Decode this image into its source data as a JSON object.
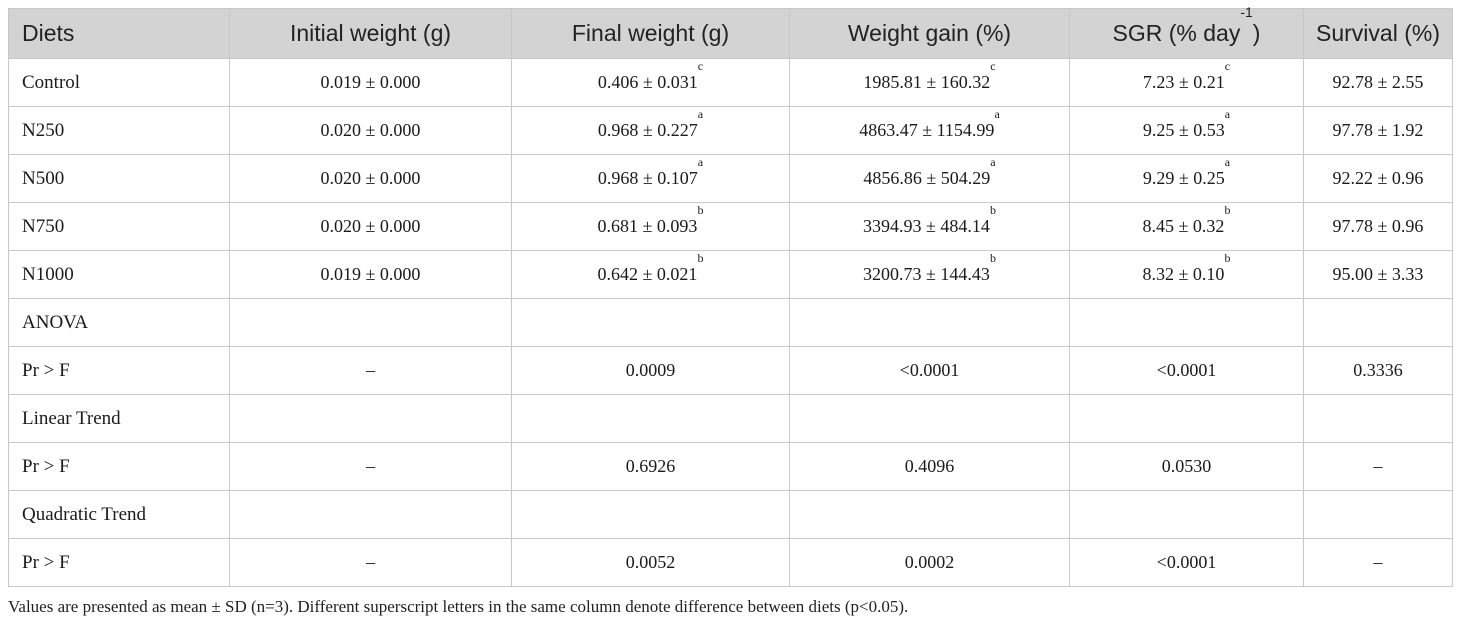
{
  "table": {
    "headers": [
      {
        "text": "Diets",
        "sup": ""
      },
      {
        "text": "Initial weight (g)",
        "sup": ""
      },
      {
        "text": "Final weight (g)",
        "sup": ""
      },
      {
        "text": "Weight gain (%)",
        "sup": ""
      },
      {
        "text": "SGR (% day",
        "sup": "-1",
        "post": ")"
      },
      {
        "text": "Survival (%)",
        "sup": ""
      }
    ],
    "rows": [
      {
        "label": "Control",
        "cells": [
          {
            "v": "0.019 ± 0.000",
            "s": ""
          },
          {
            "v": "0.406 ± 0.031",
            "s": "c"
          },
          {
            "v": "1985.81 ± 160.32",
            "s": "c"
          },
          {
            "v": "7.23 ± 0.21",
            "s": "c"
          },
          {
            "v": "92.78 ± 2.55",
            "s": ""
          }
        ]
      },
      {
        "label": "N250",
        "cells": [
          {
            "v": "0.020 ± 0.000",
            "s": ""
          },
          {
            "v": "0.968 ± 0.227",
            "s": "a"
          },
          {
            "v": "4863.47 ± 1154.99",
            "s": "a"
          },
          {
            "v": "9.25 ± 0.53",
            "s": "a"
          },
          {
            "v": "97.78 ± 1.92",
            "s": ""
          }
        ]
      },
      {
        "label": "N500",
        "cells": [
          {
            "v": "0.020 ± 0.000",
            "s": ""
          },
          {
            "v": "0.968 ± 0.107",
            "s": "a"
          },
          {
            "v": "4856.86 ± 504.29",
            "s": "a"
          },
          {
            "v": "9.29 ± 0.25",
            "s": "a"
          },
          {
            "v": "92.22 ± 0.96",
            "s": ""
          }
        ]
      },
      {
        "label": "N750",
        "cells": [
          {
            "v": "0.020 ± 0.000",
            "s": ""
          },
          {
            "v": "0.681 ± 0.093",
            "s": "b"
          },
          {
            "v": "3394.93 ± 484.14",
            "s": "b"
          },
          {
            "v": "8.45 ± 0.32",
            "s": "b"
          },
          {
            "v": "97.78 ± 0.96",
            "s": ""
          }
        ]
      },
      {
        "label": "N1000",
        "cells": [
          {
            "v": "0.019 ± 0.000",
            "s": ""
          },
          {
            "v": "0.642 ± 0.021",
            "s": "b"
          },
          {
            "v": "3200.73 ± 144.43",
            "s": "b"
          },
          {
            "v": "8.32 ± 0.10",
            "s": "b"
          },
          {
            "v": "95.00 ± 3.33",
            "s": ""
          }
        ]
      },
      {
        "label": "ANOVA",
        "cells": [
          {
            "v": "",
            "s": ""
          },
          {
            "v": "",
            "s": ""
          },
          {
            "v": "",
            "s": ""
          },
          {
            "v": "",
            "s": ""
          },
          {
            "v": "",
            "s": ""
          }
        ]
      },
      {
        "label": "Pr > F",
        "cells": [
          {
            "v": "–",
            "s": ""
          },
          {
            "v": "0.0009",
            "s": ""
          },
          {
            "v": "<0.0001",
            "s": ""
          },
          {
            "v": "<0.0001",
            "s": ""
          },
          {
            "v": "0.3336",
            "s": ""
          }
        ]
      },
      {
        "label": "Linear Trend",
        "cells": [
          {
            "v": "",
            "s": ""
          },
          {
            "v": "",
            "s": ""
          },
          {
            "v": "",
            "s": ""
          },
          {
            "v": "",
            "s": ""
          },
          {
            "v": "",
            "s": ""
          }
        ]
      },
      {
        "label": "Pr > F",
        "cells": [
          {
            "v": "–",
            "s": ""
          },
          {
            "v": "0.6926",
            "s": ""
          },
          {
            "v": "0.4096",
            "s": ""
          },
          {
            "v": "0.0530",
            "s": ""
          },
          {
            "v": "–",
            "s": ""
          }
        ]
      },
      {
        "label": "Quadratic Trend",
        "cells": [
          {
            "v": "",
            "s": ""
          },
          {
            "v": "",
            "s": ""
          },
          {
            "v": "",
            "s": ""
          },
          {
            "v": "",
            "s": ""
          },
          {
            "v": "",
            "s": ""
          }
        ]
      },
      {
        "label": "Pr > F",
        "cells": [
          {
            "v": "–",
            "s": ""
          },
          {
            "v": "0.0052",
            "s": ""
          },
          {
            "v": "0.0002",
            "s": ""
          },
          {
            "v": "<0.0001",
            "s": ""
          },
          {
            "v": "–",
            "s": ""
          }
        ]
      }
    ]
  },
  "footnote": "Values are presented as mean ± SD (n=3). Different superscript letters in the same column denote difference between diets (p<0.05).",
  "colors": {
    "header_bg": "#d3d3d3",
    "border": "#c8c8c8",
    "text": "#1a1a1a"
  }
}
